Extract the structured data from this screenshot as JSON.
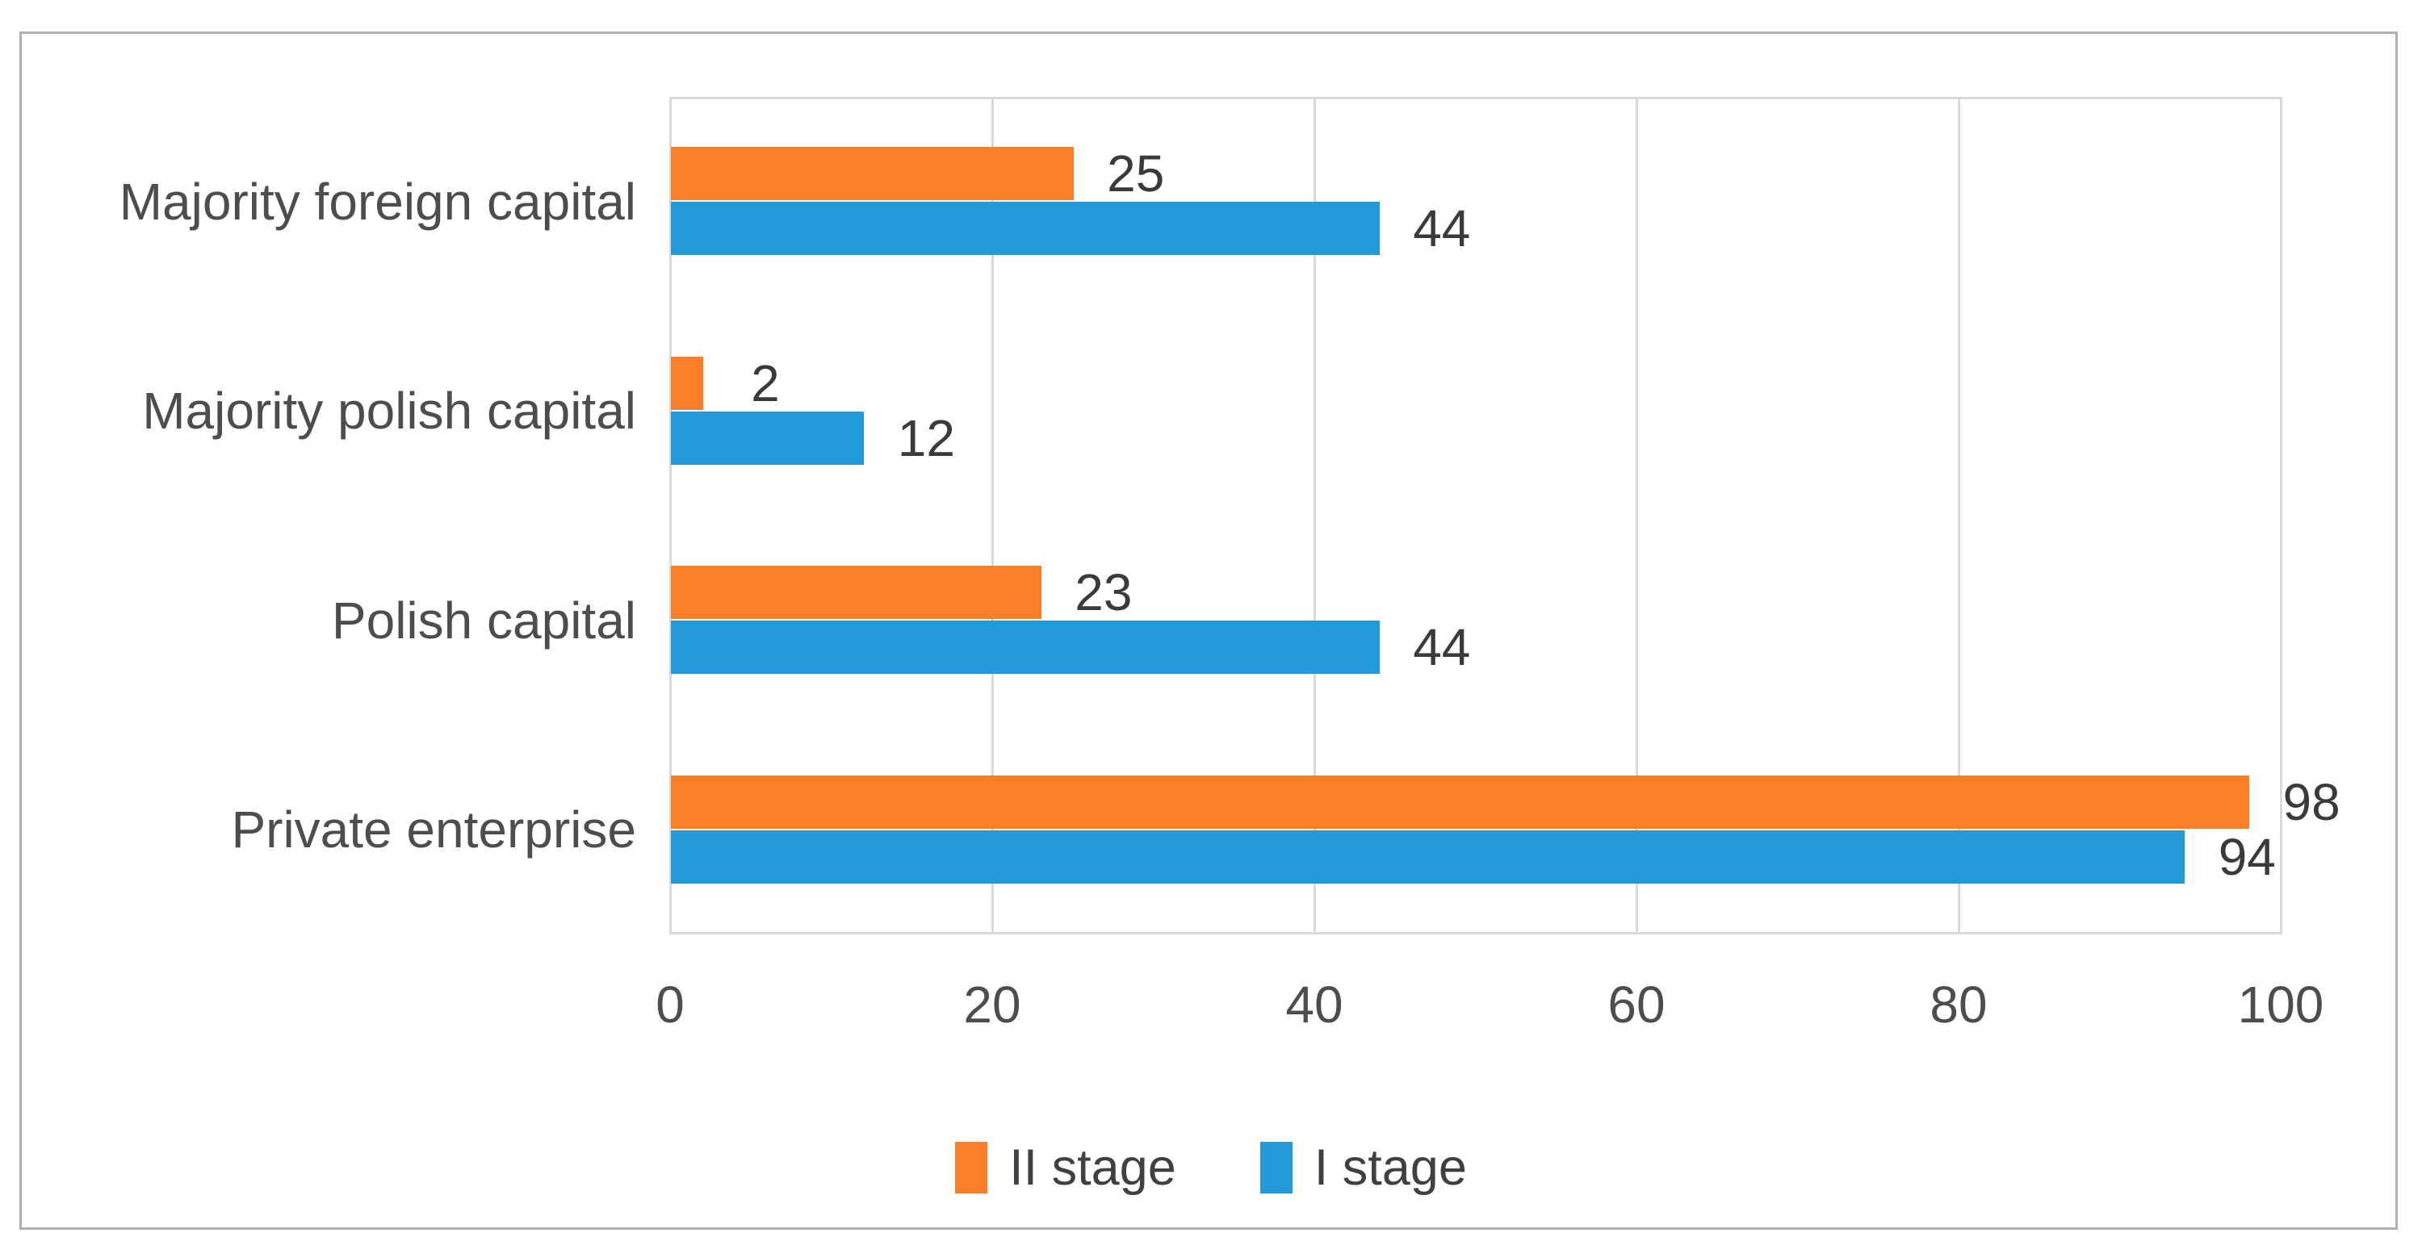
{
  "figure": {
    "background": "#ffffff",
    "border_color": "#b0b0b0"
  },
  "chart_data": {
    "type": "bar",
    "orientation": "horizontal",
    "title": "",
    "xlabel": "",
    "ylabel": "",
    "categories": [
      "Majority foreign capital",
      "Majority polish capital",
      "Polish capital",
      "Private enterprise"
    ],
    "series": [
      {
        "name": "II stage",
        "color": "#fb7e28",
        "values": [
          25,
          2,
          23,
          98
        ]
      },
      {
        "name": "I stage",
        "color": "#2299d8",
        "values": [
          44,
          12,
          44,
          94
        ]
      }
    ],
    "x_ticks": [
      0,
      20,
      40,
      60,
      80,
      100
    ],
    "xlim": [
      0,
      100
    ],
    "grid": "vertical",
    "gridline_color": "#d9d9d9",
    "plot_border_color": "#d9d9d9",
    "data_labels": true,
    "legend_position": "bottom-center",
    "category_text_color": "#4d4d4d",
    "tick_text_color": "#4d4d4d",
    "data_label_color": "#3a3a3a",
    "legend_text_color": "#404040"
  }
}
